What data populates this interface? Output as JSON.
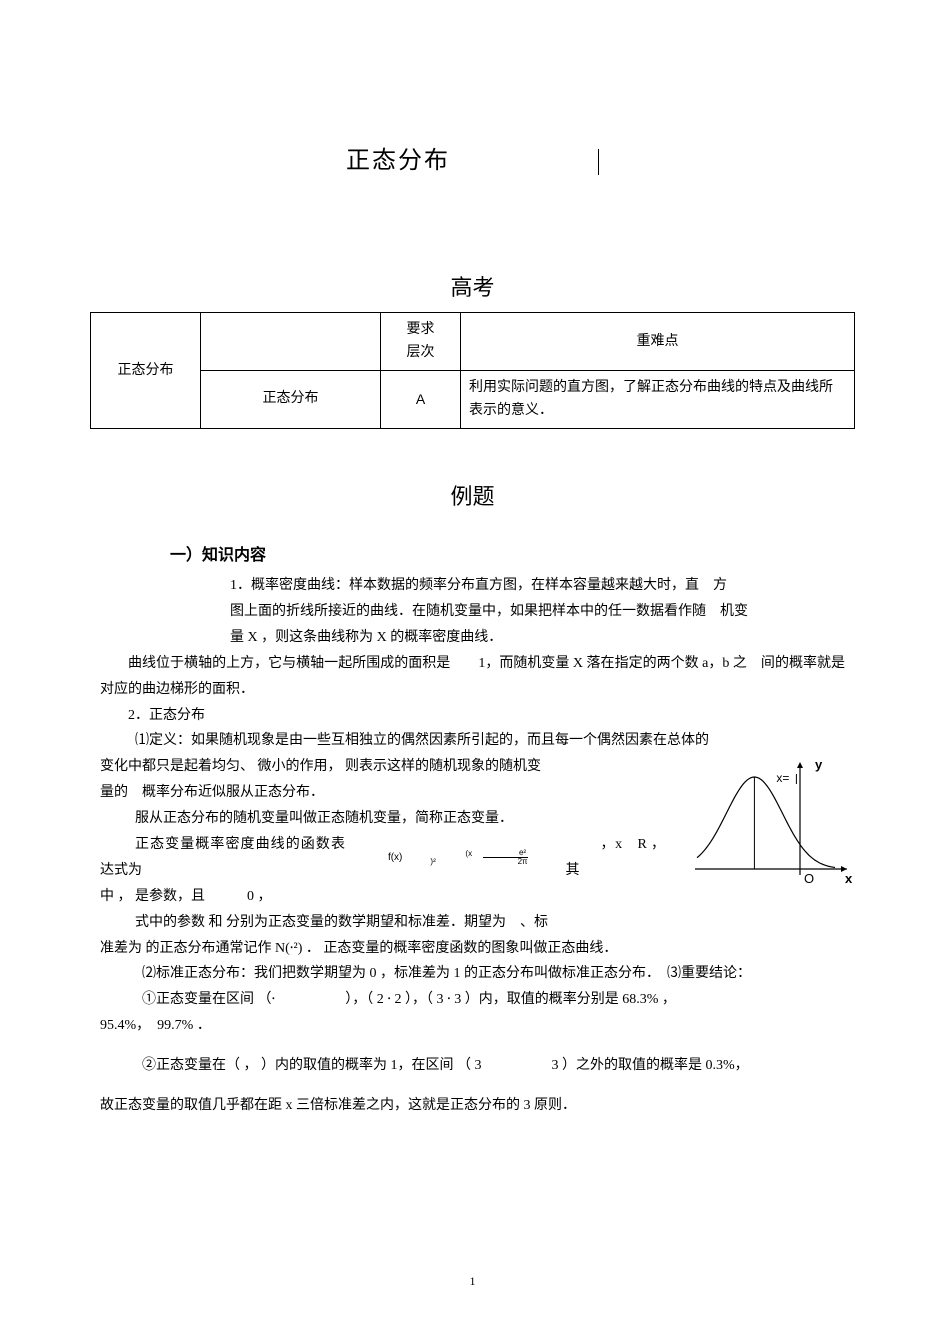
{
  "title": "正态分布",
  "section1": "高考",
  "section2": "例题",
  "table": {
    "headers": {
      "level": "要求\n层次",
      "focus": "重难点"
    },
    "row_label": "正态分布",
    "sub_label": "正态分布",
    "level_value": "A",
    "focus_value": "利用实际问题的直方图，了解正态分布曲线的特点及曲线所表示的意义．"
  },
  "knowledge_header": "一）知识内容",
  "p1_prefix": "1．概率密度曲线：样本数据的频率分布直方图，在样本容量越来越大时，直　方",
  "p1_line2": "图上面的折线所接近的曲线．在随机变量中，如果把样本中的任一数据看作随　机变",
  "p1_line3": "量 X ，则这条曲线称为 X 的概率密度曲线．",
  "p2": "曲线位于横轴的上方，它与横轴一起所围成的面积是　　1，而随机变量 X 落在指定的两个数 a，b 之　间的概率就是对应的曲边梯形的面积．",
  "p3_header": "2．正态分布",
  "p3_1": "⑴定义：如果随机现象是由一些互相独立的偶然因素所引起的，而且每一个偶然因素在总体的",
  "p3_2": "变化中都只是起着均匀、 微小的作用， 则表示这样的随机现象的随机变",
  "p3_3": "量的　概率分布近似服从正态分布．",
  "p3_4": "服从正态分布的随机变量叫做正态随机变量，简称正态变量．",
  "p3_5a": "正态变量概率密度曲线的函数表达式为",
  "p3_5b": "f(x)",
  "p3_5c": "，x　R ，其",
  "p3_6": "中 ， 是参数，且　　　0 ，",
  "p3_7": "式中的参数 和 分别为正态变量的数学期望和标准差．期望为　、标",
  "p3_8": "准差为 的正态分布通常记作 N(⸱²) ． 正态变量的概率密度函数的图象叫做正态曲线．",
  "p4_1": "⑵标准正态分布：我们把数学期望为 0 ，标准差为 1 的正态分布叫做标准正态分布．　⑶重要结论：",
  "p4_2": "①正态变量在区间 （⸱　　　　　），（ 2 ⸱ 2 ），（ 3 ⸱ 3 ）内，取值的概率分别是 68.3% ，",
  "p4_3": "95.4%，　99.7% ．",
  "p5_1": "②正态变量在（ ， ）内的取值的概率为 1，在区间 （ 3　　　　　3 ）之外的取值的概率是 0.3%，",
  "p5_2": "故正态变量的取值几乎都在距 x 三倍标准差之内，这就是正态分布的 3 原则．",
  "curve": {
    "x_label": "x",
    "y_label": "y",
    "mu_label": "x=",
    "origin": "O",
    "curve_color": "#000000",
    "axis_color": "#000000",
    "bg_color": "#ffffff",
    "stroke_width": 1.2,
    "mu_pos": 0.38
  },
  "page_number": "1",
  "formula": {
    "frac_top": "(x   )²",
    "frac_mid": "e²",
    "frac_bottom": "2π"
  }
}
